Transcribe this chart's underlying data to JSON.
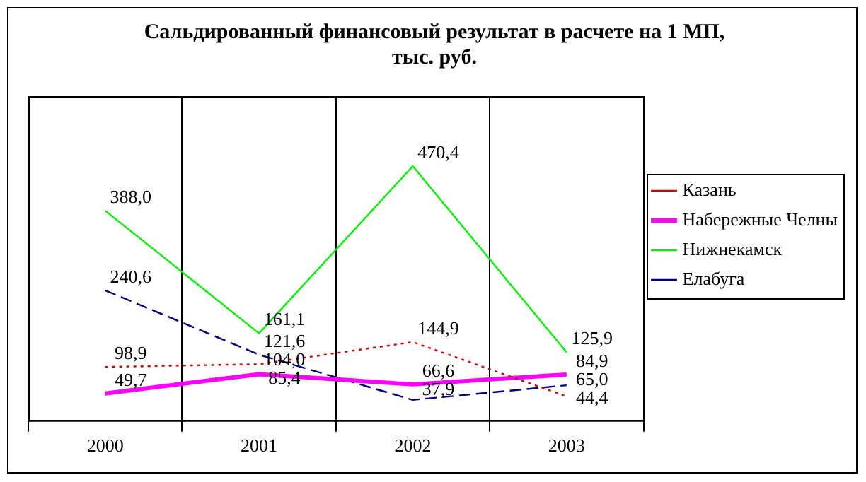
{
  "chart_data": {
    "type": "line",
    "title": "Сальдированный финансовый результат в расчете на 1 МП,\nтыс. руб.",
    "categories": [
      "2000",
      "2001",
      "2002",
      "2003"
    ],
    "series": [
      {
        "name": "Казань",
        "color": "#cc0000",
        "line_style": "dotted",
        "values": [
          98.9,
          104.0,
          144.9,
          44.4
        ],
        "value_labels": [
          "98,9",
          "104,0",
          "144,9",
          "44,4"
        ]
      },
      {
        "name": "Набережные Челны",
        "color": "#ff00ff",
        "line_style": "solid",
        "values": [
          49.7,
          85.4,
          66.6,
          84.9
        ],
        "value_labels": [
          "49,7",
          "85,4",
          "66,6",
          "84,9"
        ]
      },
      {
        "name": "Нижнекамск",
        "color": "#00ee00",
        "line_style": "solid",
        "values": [
          388.0,
          161.1,
          470.4,
          125.9
        ],
        "value_labels": [
          "388,0",
          "161,1",
          "470,4",
          "125,9"
        ]
      },
      {
        "name": "Елабуга",
        "color": "#000080",
        "line_style": "dashed",
        "values": [
          240.6,
          121.6,
          37.9,
          65.0
        ],
        "value_labels": [
          "240,6",
          "121,6",
          "37,9",
          "65,0"
        ]
      }
    ],
    "tick_labels": "x",
    "grid": "x",
    "legend": "right",
    "marker": "none"
  }
}
